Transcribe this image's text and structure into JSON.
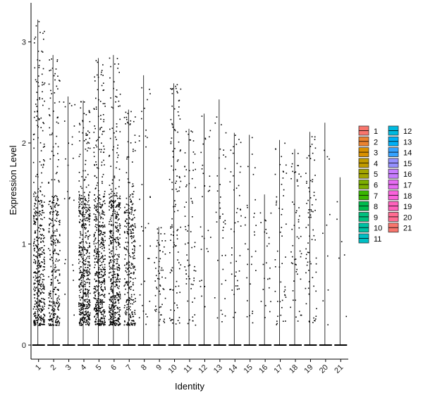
{
  "chart_data": {
    "type": "violin-jitter",
    "xlabel": "Identity",
    "ylabel": "Expression Level",
    "ylim": [
      -0.15,
      3.35
    ],
    "yticks": [
      0,
      1,
      2,
      3
    ],
    "categories": [
      "1",
      "2",
      "3",
      "4",
      "5",
      "6",
      "7",
      "8",
      "9",
      "10",
      "11",
      "12",
      "13",
      "14",
      "15",
      "16",
      "17",
      "18",
      "19",
      "20",
      "21"
    ],
    "max_values": [
      3.22,
      2.87,
      2.46,
      2.42,
      2.84,
      2.87,
      2.33,
      2.67,
      1.17,
      2.59,
      2.14,
      2.29,
      2.43,
      2.1,
      2.08,
      1.49,
      2.03,
      1.94,
      2.11,
      2.2,
      1.66
    ],
    "nonzero_counts": [
      450,
      320,
      25,
      500,
      520,
      480,
      300,
      35,
      60,
      110,
      70,
      30,
      40,
      45,
      30,
      25,
      50,
      55,
      75,
      10,
      6
    ],
    "legend": {
      "placement": "right",
      "entries": [
        "1",
        "2",
        "3",
        "4",
        "5",
        "6",
        "7",
        "8",
        "9",
        "10",
        "11",
        "12",
        "13",
        "14",
        "15",
        "16",
        "17",
        "18",
        "19",
        "20",
        "21"
      ],
      "colors": [
        "#F8766D",
        "#EA8331",
        "#D89000",
        "#C09B00",
        "#A3A500",
        "#7CAE00",
        "#39B600",
        "#00BB4E",
        "#00BF7D",
        "#00C1A3",
        "#00BFC4",
        "#00BAE0",
        "#00B0F6",
        "#35A2FF",
        "#9590FF",
        "#C77CFF",
        "#E76BF3",
        "#FA62DB",
        "#FF62BC",
        "#FF6C91",
        "#F8766D"
      ]
    },
    "grid": false
  }
}
